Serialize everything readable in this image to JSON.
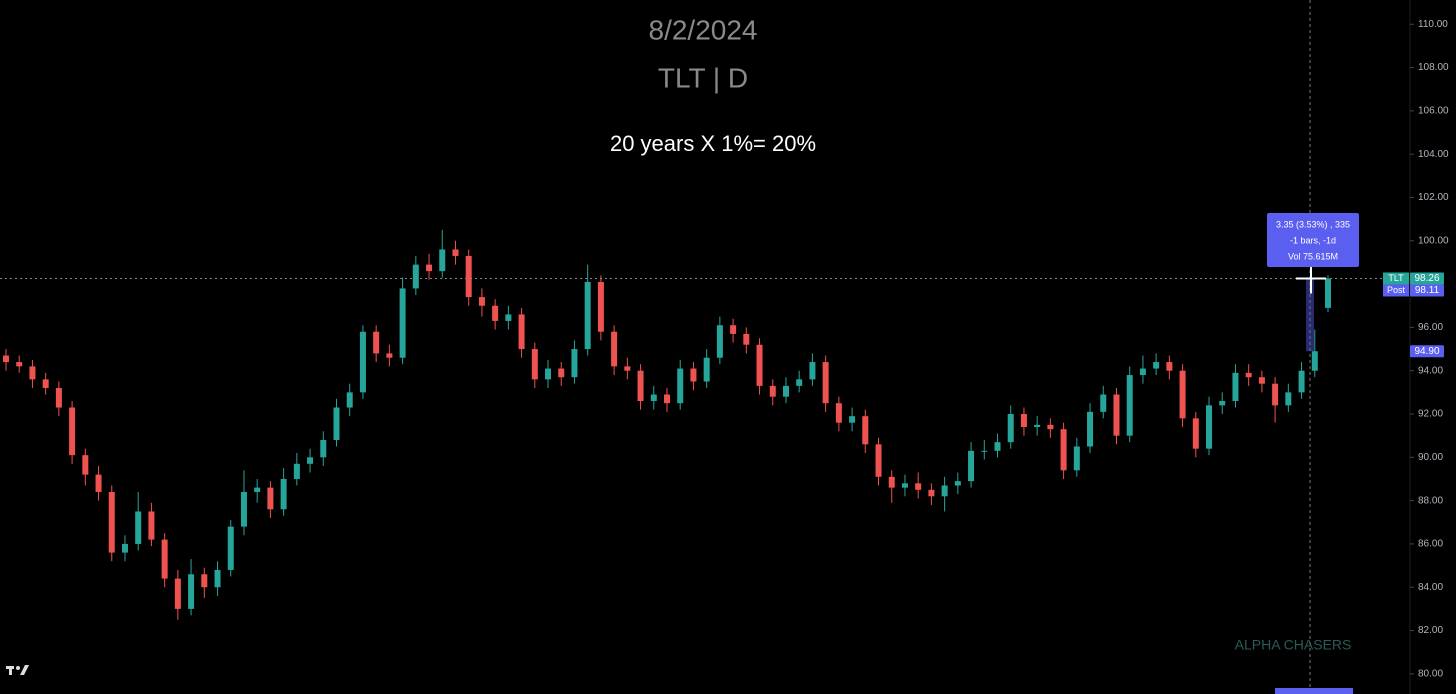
{
  "chart_data": {
    "type": "candlestick",
    "title": "8/2/2024",
    "subtitle": "TLT | D",
    "annotation": "20 years X 1%= 20%",
    "watermark": "ALPHA CHASERS",
    "up_color": "#26a69a",
    "down_color": "#ef5350",
    "ylim": [
      79.07,
      111.12
    ],
    "yticks": [
      {
        "value": 80,
        "label": "80.00"
      },
      {
        "value": 82,
        "label": "82.00"
      },
      {
        "value": 84,
        "label": "84.00"
      },
      {
        "value": 86,
        "label": "86.00"
      },
      {
        "value": 88,
        "label": "88.00"
      },
      {
        "value": 90,
        "label": "90.00"
      },
      {
        "value": 92,
        "label": "92.00"
      },
      {
        "value": 94,
        "label": "94.00"
      },
      {
        "value": 96,
        "label": "96.00"
      },
      {
        "value": 98,
        "label": "98.00"
      },
      {
        "value": 100,
        "label": "100.00"
      },
      {
        "value": 102,
        "label": "102.00"
      },
      {
        "value": 104,
        "label": "104.00"
      },
      {
        "value": 106,
        "label": "106.00"
      },
      {
        "value": 108,
        "label": "108.00"
      },
      {
        "value": 110,
        "label": "110.00"
      }
    ],
    "open": [
      94.7,
      94.4,
      94.2,
      93.6,
      93.2,
      92.3,
      90.1,
      89.2,
      88.4,
      85.6,
      86.0,
      87.5,
      86.2,
      84.4,
      83.0,
      84.6,
      84.0,
      84.8,
      86.8,
      88.4,
      88.6,
      87.6,
      89.0,
      89.7,
      90.0,
      90.8,
      92.3,
      93.0,
      95.8,
      94.8,
      94.6,
      97.8,
      98.9,
      98.6,
      99.6,
      99.3,
      97.4,
      97.0,
      96.3,
      96.6,
      95.0,
      93.6,
      94.1,
      93.7,
      95.0,
      98.1,
      95.8,
      94.2,
      94.0,
      92.6,
      92.9,
      92.5,
      94.1,
      93.5,
      94.6,
      96.1,
      95.7,
      95.2,
      93.3,
      92.8,
      93.3,
      93.6,
      94.4,
      92.5,
      91.6,
      91.9,
      90.6,
      89.1,
      88.6,
      88.8,
      88.5,
      88.2,
      88.7,
      88.9,
      90.3,
      90.3,
      90.7,
      92.0,
      91.4,
      91.5,
      91.3,
      89.4,
      90.5,
      92.1,
      92.9,
      91.0,
      93.8,
      94.1,
      94.4,
      94.0,
      91.8,
      90.4,
      92.4,
      92.6,
      93.9,
      93.7,
      93.4,
      92.4,
      93.0,
      94.0,
      96.9
    ],
    "high": [
      95.0,
      94.7,
      94.5,
      93.9,
      93.5,
      92.6,
      90.4,
      89.6,
      88.7,
      86.4,
      88.4,
      87.9,
      86.5,
      84.8,
      85.3,
      84.9,
      85.2,
      87.1,
      89.4,
      89.0,
      88.9,
      89.5,
      90.2,
      90.4,
      91.2,
      92.7,
      93.4,
      96.1,
      96.1,
      95.2,
      98.3,
      99.3,
      99.4,
      100.5,
      100.0,
      99.6,
      97.8,
      97.3,
      97.0,
      96.9,
      95.3,
      94.5,
      94.4,
      95.4,
      98.9,
      98.4,
      96.1,
      94.6,
      94.3,
      93.3,
      93.2,
      94.5,
      94.4,
      95.0,
      96.5,
      96.4,
      96.0,
      95.5,
      93.6,
      93.7,
      94.0,
      94.8,
      94.7,
      92.8,
      92.3,
      92.2,
      90.9,
      89.4,
      89.2,
      89.3,
      88.8,
      89.1,
      89.3,
      90.7,
      90.8,
      91.1,
      92.4,
      92.3,
      91.9,
      91.8,
      91.6,
      90.9,
      92.5,
      93.3,
      93.2,
      94.2,
      94.7,
      94.8,
      94.7,
      94.3,
      92.1,
      92.8,
      93.0,
      94.3,
      94.3,
      94.0,
      93.7,
      93.4,
      94.4,
      95.9,
      98.4
    ],
    "low": [
      94.0,
      93.9,
      93.2,
      92.9,
      91.9,
      89.7,
      88.7,
      88.0,
      85.2,
      85.2,
      85.7,
      85.9,
      84.0,
      82.5,
      82.7,
      83.5,
      83.6,
      84.5,
      86.4,
      87.9,
      87.2,
      87.3,
      88.7,
      89.3,
      89.6,
      90.5,
      91.9,
      92.7,
      94.4,
      94.2,
      94.3,
      97.5,
      98.2,
      98.3,
      98.9,
      97.0,
      96.5,
      95.9,
      95.9,
      94.6,
      93.2,
      93.2,
      93.3,
      93.4,
      94.7,
      95.4,
      93.8,
      93.6,
      92.2,
      92.2,
      92.1,
      92.2,
      93.1,
      93.2,
      94.3,
      95.3,
      94.8,
      92.9,
      92.4,
      92.5,
      93.0,
      93.3,
      92.1,
      91.2,
      91.2,
      90.2,
      88.7,
      87.9,
      88.2,
      88.1,
      87.8,
      87.5,
      88.3,
      88.6,
      89.9,
      90.0,
      90.4,
      91.0,
      91.0,
      90.9,
      89.0,
      89.1,
      90.2,
      91.8,
      90.6,
      90.7,
      93.4,
      93.8,
      93.6,
      91.4,
      90.0,
      90.1,
      92.0,
      92.3,
      93.3,
      93.0,
      91.6,
      92.1,
      92.7,
      93.7,
      96.7
    ],
    "close": [
      94.4,
      94.2,
      93.6,
      93.2,
      92.3,
      90.1,
      89.2,
      88.4,
      85.6,
      86.0,
      87.5,
      86.2,
      84.4,
      83.0,
      84.6,
      84.0,
      84.8,
      86.8,
      88.4,
      88.6,
      87.6,
      89.0,
      89.7,
      90.0,
      90.8,
      92.3,
      93.0,
      95.8,
      94.8,
      94.6,
      97.8,
      98.9,
      98.6,
      99.6,
      99.3,
      97.4,
      97.0,
      96.3,
      96.6,
      95.0,
      93.6,
      94.1,
      93.7,
      95.0,
      98.1,
      95.8,
      94.2,
      94.0,
      92.6,
      92.9,
      92.5,
      94.1,
      93.5,
      94.6,
      96.1,
      95.7,
      95.2,
      93.3,
      92.8,
      93.3,
      93.6,
      94.4,
      92.5,
      91.6,
      91.9,
      90.6,
      89.1,
      88.6,
      88.8,
      88.5,
      88.2,
      88.7,
      88.9,
      90.3,
      90.3,
      90.7,
      92.0,
      91.4,
      91.5,
      91.3,
      89.4,
      90.5,
      92.1,
      92.9,
      91.0,
      93.8,
      94.1,
      94.4,
      94.0,
      91.8,
      90.4,
      92.4,
      92.6,
      93.9,
      93.7,
      93.4,
      92.4,
      93.0,
      94.0,
      94.9,
      98.26
    ],
    "price_labels": [
      {
        "tag": "TLT",
        "value": 98.26,
        "label": "98.26",
        "color": "#26a69a"
      },
      {
        "tag": "Post",
        "value": 98.11,
        "label": "98.11",
        "color": "#5b5ff0"
      },
      {
        "value": 94.9,
        "label": "94.90",
        "color": "#5b5ff0"
      }
    ],
    "tooltip": [
      "3.35 (3.53%) , 335",
      "-1 bars, -1d",
      "Vol 75.615M"
    ]
  }
}
